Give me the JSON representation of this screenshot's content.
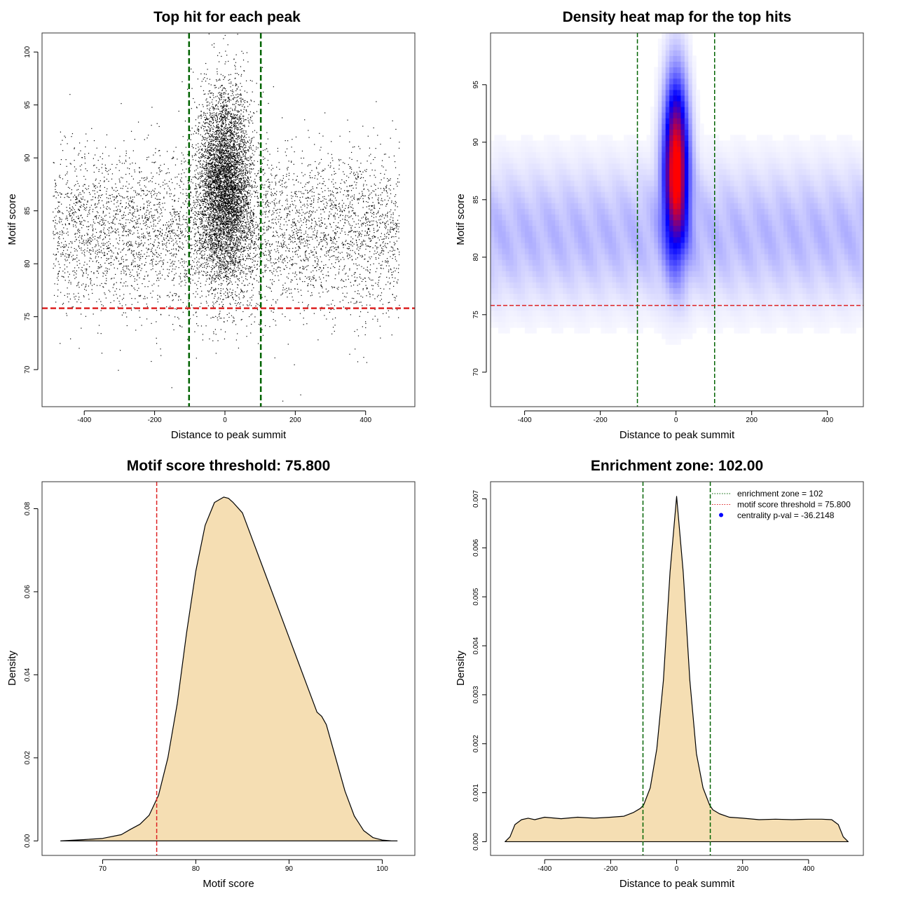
{
  "figure": {
    "panels": [
      "scatter",
      "heatmap",
      "score_density",
      "distance_density"
    ]
  },
  "chart_data": [
    {
      "id": "scatter",
      "type": "scatter",
      "title": "Top hit for each peak",
      "xlabel": "Distance to peak summit",
      "ylabel": "Motif score",
      "xlim": [
        -520,
        540
      ],
      "ylim": [
        66.5,
        101.8
      ],
      "xticks": [
        -400,
        -200,
        0,
        200,
        400
      ],
      "yticks": [
        70,
        75,
        80,
        85,
        90,
        95,
        100
      ],
      "point_color": "#000000",
      "background_points": {
        "x_range": [
          -490,
          495
        ],
        "y_mean": 83.0,
        "y_sd": 3.8,
        "count": 5200
      },
      "central_cluster": {
        "x_center": 0,
        "x_sd": 38,
        "y_mean": 87.5,
        "y_sd": 4.5,
        "count": 5600
      },
      "vlines": [
        {
          "x": -102,
          "color": "#006400",
          "style": "dashed"
        },
        {
          "x": 102,
          "color": "#006400",
          "style": "dashed"
        }
      ],
      "hlines": [
        {
          "y": 75.8,
          "color": "#dd2222",
          "style": "dashed"
        }
      ],
      "grid": false
    },
    {
      "id": "heatmap",
      "type": "heatmap",
      "title": "Density heat map for the top hits",
      "xlabel": "Distance to peak summit",
      "ylabel": "Motif score",
      "xlim": [
        -490,
        495
      ],
      "ylim": [
        67,
        99.5
      ],
      "xticks": [
        -400,
        -200,
        0,
        200,
        400
      ],
      "yticks": [
        70,
        75,
        80,
        85,
        90,
        95
      ],
      "colors": [
        "#ffffff",
        "#0000ff",
        "#ff0000"
      ],
      "hotspot": {
        "x_center": 0,
        "x_sd": 22,
        "y_center": 88,
        "y_sd": 5
      },
      "background_band": {
        "y_center": 82,
        "y_sd": 4
      },
      "vlines": [
        {
          "x": -102,
          "color": "#006400",
          "style": "dashed"
        },
        {
          "x": 102,
          "color": "#006400",
          "style": "dashed"
        }
      ],
      "hlines": [
        {
          "y": 75.8,
          "color": "#dd2222",
          "style": "dashed"
        }
      ],
      "grid": false
    },
    {
      "id": "score_density",
      "type": "area",
      "title": "Motif score threshold: 75.800",
      "xlabel": "Motif score",
      "ylabel": "Density",
      "xlim": [
        63.5,
        103.5
      ],
      "ylim": [
        -0.0035,
        0.0865
      ],
      "xticks": [
        70,
        80,
        90,
        100
      ],
      "yticks": [
        0.0,
        0.02,
        0.04,
        0.06,
        0.08
      ],
      "ytick_labels": [
        "0.00",
        "0.02",
        "0.04",
        "0.06",
        "0.08"
      ],
      "fill": "#f5deb3",
      "x": [
        65.5,
        68,
        70,
        72,
        73,
        74,
        75,
        76,
        77,
        78,
        79,
        80,
        81,
        82,
        83,
        83.5,
        84,
        85,
        86,
        87,
        88,
        89,
        90,
        91,
        92,
        93,
        93.5,
        94,
        95,
        96,
        97,
        98,
        99,
        100,
        101,
        101.6
      ],
      "y": [
        0.0,
        0.0003,
        0.0006,
        0.0015,
        0.0028,
        0.004,
        0.0062,
        0.011,
        0.02,
        0.033,
        0.05,
        0.065,
        0.076,
        0.0815,
        0.0828,
        0.0825,
        0.0815,
        0.079,
        0.073,
        0.067,
        0.061,
        0.055,
        0.049,
        0.043,
        0.037,
        0.031,
        0.03,
        0.028,
        0.02,
        0.012,
        0.006,
        0.0025,
        0.0008,
        0.0002,
        0.0,
        0.0
      ],
      "vlines": [
        {
          "x": 75.8,
          "color": "#dd2222",
          "style": "dashed"
        }
      ],
      "grid": false
    },
    {
      "id": "distance_density",
      "type": "area",
      "title": "Enrichment zone: 102.00",
      "xlabel": "Distance to peak summit",
      "ylabel": "Density",
      "xlim": [
        -564,
        566
      ],
      "ylim": [
        -0.00028,
        0.00735
      ],
      "xticks": [
        -400,
        -200,
        0,
        200,
        400
      ],
      "yticks": [
        0.0,
        0.001,
        0.002,
        0.003,
        0.004,
        0.005,
        0.006,
        0.007
      ],
      "ytick_labels": [
        "0.000",
        "0.001",
        "0.002",
        "0.003",
        "0.004",
        "0.005",
        "0.006",
        "0.007"
      ],
      "fill": "#f5deb3",
      "x": [
        -520,
        -505,
        -490,
        -470,
        -450,
        -430,
        -400,
        -350,
        -300,
        -250,
        -200,
        -160,
        -130,
        -110,
        -100,
        -80,
        -60,
        -40,
        -20,
        0,
        20,
        40,
        60,
        80,
        100,
        110,
        130,
        160,
        200,
        250,
        300,
        350,
        400,
        440,
        470,
        490,
        505,
        520
      ],
      "y": [
        0.0,
        0.0001,
        0.00035,
        0.00045,
        0.00048,
        0.00045,
        0.0005,
        0.00047,
        0.0005,
        0.00048,
        0.0005,
        0.00052,
        0.0006,
        0.00068,
        0.00075,
        0.0011,
        0.0019,
        0.0033,
        0.0055,
        0.00705,
        0.0055,
        0.0033,
        0.0018,
        0.0011,
        0.00075,
        0.00065,
        0.00057,
        0.0005,
        0.00048,
        0.00045,
        0.00046,
        0.00045,
        0.00046,
        0.00046,
        0.00045,
        0.00035,
        0.0001,
        0.0
      ],
      "vlines": [
        {
          "x": -102,
          "color": "#006400",
          "style": "dashed"
        },
        {
          "x": 102,
          "color": "#006400",
          "style": "dashed"
        }
      ],
      "legend": {
        "position": "top-right",
        "entries": [
          {
            "label": "enrichment zone = 102",
            "color": "#006400",
            "symbol": "dotted-line"
          },
          {
            "label": "motif score threshold = 75.800",
            "color": "#dd2222",
            "symbol": "dotted-line"
          },
          {
            "label": "centrality p-val = -36.2148",
            "color": "#0000ff",
            "symbol": "dot"
          }
        ]
      },
      "grid": false
    }
  ]
}
